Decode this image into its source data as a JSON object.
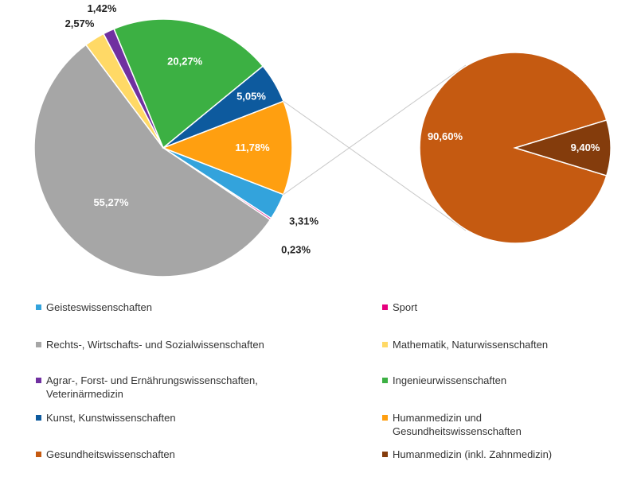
{
  "chart_data": {
    "type": "bar-of-pie",
    "main_pie": {
      "slices": [
        {
          "category": "Geisteswissenschaften",
          "value": 3.31,
          "label": "3,31%",
          "color": "#33a3dc"
        },
        {
          "category": "Sport",
          "value": 0.23,
          "label": "0,23%",
          "color": "#e6007e"
        },
        {
          "category": "Rechts-, Wirtschafts- und Sozialwissenschaften",
          "value": 55.27,
          "label": "55,27%",
          "color": "#a6a6a6"
        },
        {
          "category": "Mathematik, Naturwissenschaften",
          "value": 2.57,
          "label": "2,57%",
          "color": "#ffd966"
        },
        {
          "category": "Agrar-, Forst- und Ernährungswissenschaften,\nVeterinärmedizin",
          "value": 1.42,
          "label": "1,42%",
          "color": "#7030a0"
        },
        {
          "category": "Ingenieurwissenschaften",
          "value": 20.27,
          "label": "20,27%",
          "color": "#3cb043"
        },
        {
          "category": "Kunst, Kunstwissenschaften",
          "value": 5.05,
          "label": "5,05%",
          "color": "#0d5a9e"
        },
        {
          "category": "Humanmedizin und\nGesundheitswissenschaften",
          "value": 11.78,
          "label": "11,78%",
          "color": "#ff9f10"
        }
      ]
    },
    "secondary_pie": {
      "source_category": "Humanmedizin und\nGesundheitswissenschaften",
      "slices": [
        {
          "category": "Gesundheitswissenschaften",
          "value": 90.6,
          "label": "90,60%",
          "color": "#c55a11"
        },
        {
          "category": "Humanmedizin (inkl. Zahnmedizin)",
          "value": 9.4,
          "label": "9,40%",
          "color": "#843c0c"
        }
      ]
    },
    "legend": [
      {
        "label": "Geisteswissenschaften",
        "color": "#33a3dc"
      },
      {
        "label": "Sport",
        "color": "#e6007e"
      },
      {
        "label": "Rechts-, Wirtschafts- und Sozialwissenschaften",
        "color": "#a6a6a6"
      },
      {
        "label": "Mathematik, Naturwissenschaften",
        "color": "#ffd966"
      },
      {
        "label": "Agrar-, Forst- und Ernährungswissenschaften,\nVeterinärmedizin",
        "color": "#7030a0"
      },
      {
        "label": "Ingenieurwissenschaften",
        "color": "#3cb043"
      },
      {
        "label": "Kunst, Kunstwissenschaften",
        "color": "#0d5a9e"
      },
      {
        "label": "Humanmedizin und\nGesundheitswissenschaften",
        "color": "#ff9f10"
      },
      {
        "label": "Gesundheitswissenschaften",
        "color": "#c55a11"
      },
      {
        "label": "Humanmedizin (inkl. Zahnmedizin)",
        "color": "#843c0c"
      }
    ],
    "legend_position": "bottom",
    "title": ""
  }
}
